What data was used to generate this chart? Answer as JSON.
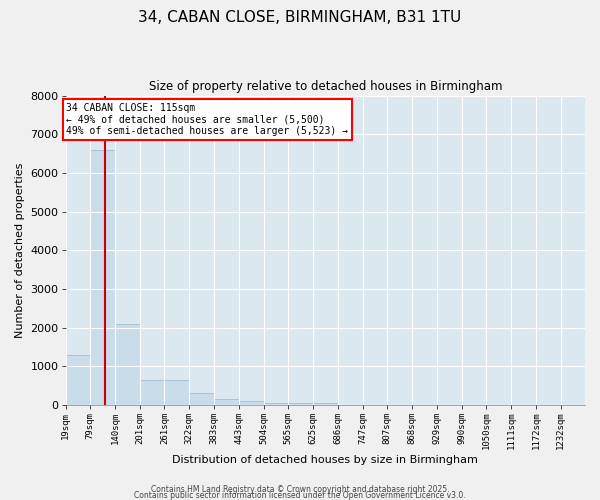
{
  "title_line1": "34, CABAN CLOSE, BIRMINGHAM, B31 1TU",
  "title_line2": "Size of property relative to detached houses in Birmingham",
  "xlabel": "Distribution of detached houses by size in Birmingham",
  "ylabel": "Number of detached properties",
  "bar_color": "#c8dcea",
  "bar_edge_color": "#9ab8cc",
  "fig_background": "#f0f0f0",
  "plot_background": "#dce8f0",
  "grid_color": "#ffffff",
  "annotation_text": "34 CABAN CLOSE: 115sqm\n← 49% of detached houses are smaller (5,500)\n49% of semi-detached houses are larger (5,523) →",
  "vline_color": "#cc0000",
  "categories": [
    "19sqm",
    "79sqm",
    "140sqm",
    "201sqm",
    "261sqm",
    "322sqm",
    "383sqm",
    "443sqm",
    "504sqm",
    "565sqm",
    "625sqm",
    "686sqm",
    "747sqm",
    "807sqm",
    "868sqm",
    "929sqm",
    "990sqm",
    "1050sqm",
    "1111sqm",
    "1172sqm",
    "1232sqm"
  ],
  "bin_edges": [
    19,
    79,
    140,
    201,
    261,
    322,
    383,
    443,
    504,
    565,
    625,
    686,
    747,
    807,
    868,
    929,
    990,
    1050,
    1111,
    1172,
    1232
  ],
  "values": [
    1300,
    6600,
    2100,
    650,
    650,
    310,
    150,
    90,
    45,
    45,
    50,
    0,
    0,
    0,
    0,
    0,
    0,
    0,
    0,
    0,
    0
  ],
  "ylim": [
    0,
    8000
  ],
  "yticks": [
    0,
    1000,
    2000,
    3000,
    4000,
    5000,
    6000,
    7000,
    8000
  ],
  "vline_x": 115,
  "footer_line1": "Contains HM Land Registry data © Crown copyright and database right 2025.",
  "footer_line2": "Contains public sector information licensed under the Open Government Licence v3.0."
}
